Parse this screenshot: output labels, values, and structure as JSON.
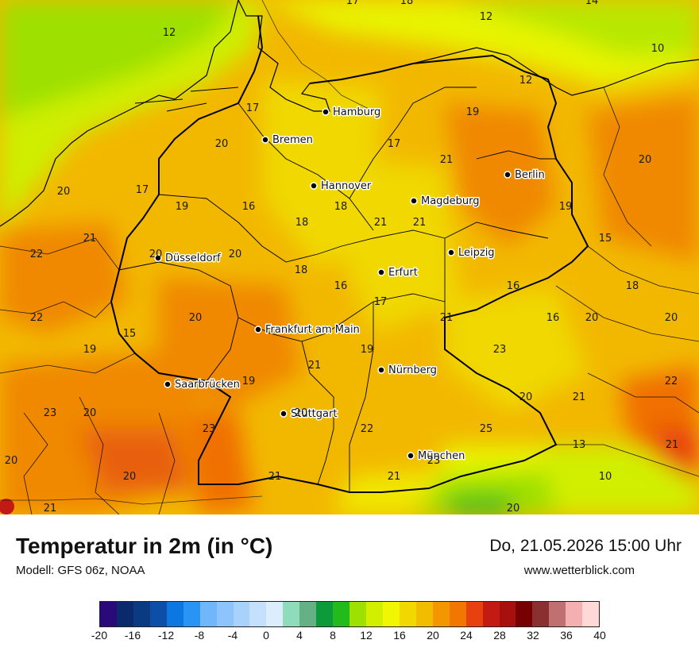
{
  "map": {
    "cities": [
      {
        "name": "Hamburg"
      },
      {
        "name": "Bremen"
      },
      {
        "name": "Hannover"
      },
      {
        "name": "Berlin"
      },
      {
        "name": "Magdeburg"
      },
      {
        "name": "Leipzig"
      },
      {
        "name": "Düsseldorf"
      },
      {
        "name": "Erfurt"
      },
      {
        "name": "Frankfurt am Main"
      },
      {
        "name": "Nürnberg"
      },
      {
        "name": "Saarbrücken"
      },
      {
        "name": "Stuttgart"
      },
      {
        "name": "München"
      }
    ],
    "isotherm_labels": [
      "17",
      "18",
      "14",
      "12",
      "12",
      "10",
      "12",
      "17",
      "19",
      "20",
      "17",
      "21",
      "20",
      "20",
      "17",
      "19",
      "16",
      "18",
      "19",
      "18",
      "21",
      "21",
      "21",
      "15",
      "22",
      "20",
      "20",
      "18",
      "16",
      "16",
      "18",
      "17",
      "22",
      "20",
      "21",
      "16",
      "20",
      "20",
      "15",
      "19",
      "19",
      "23",
      "21",
      "19",
      "22",
      "20",
      "21",
      "23",
      "20",
      "20",
      "22",
      "25",
      "23",
      "20",
      "20",
      "21",
      "21",
      "23",
      "21",
      "13",
      "10",
      "20",
      "21"
    ]
  },
  "footer": {
    "title": "Temperatur in 2m (in °C)",
    "model": "Modell: GFS 06z, NOAA",
    "datetime": "Do, 21.05.2026 15:00 Uhr",
    "website": "www.wetterblick.com"
  },
  "legend": {
    "colors": [
      "#2a0a7a",
      "#0b2a6e",
      "#0a3a82",
      "#0d4fa8",
      "#0a78e0",
      "#2a94f4",
      "#6fb6fa",
      "#8cc4fb",
      "#a8d2fc",
      "#c4e0fd",
      "#dceefe",
      "#8fdcba",
      "#66b085",
      "#0d9a3a",
      "#22bb1b",
      "#9ee000",
      "#d2ef00",
      "#f0f700",
      "#f0d800",
      "#f2bc00",
      "#f39600",
      "#f27700",
      "#e8400f",
      "#c41a14",
      "#a81010",
      "#780000",
      "#8b3030",
      "#c07070",
      "#f4b0b0",
      "#ffd8d8"
    ],
    "tick_labels": [
      "-20",
      "-16",
      "-12",
      "-8",
      "-4",
      "0",
      "4",
      "8",
      "12",
      "16",
      "20",
      "24",
      "28",
      "32",
      "36",
      "40"
    ]
  }
}
